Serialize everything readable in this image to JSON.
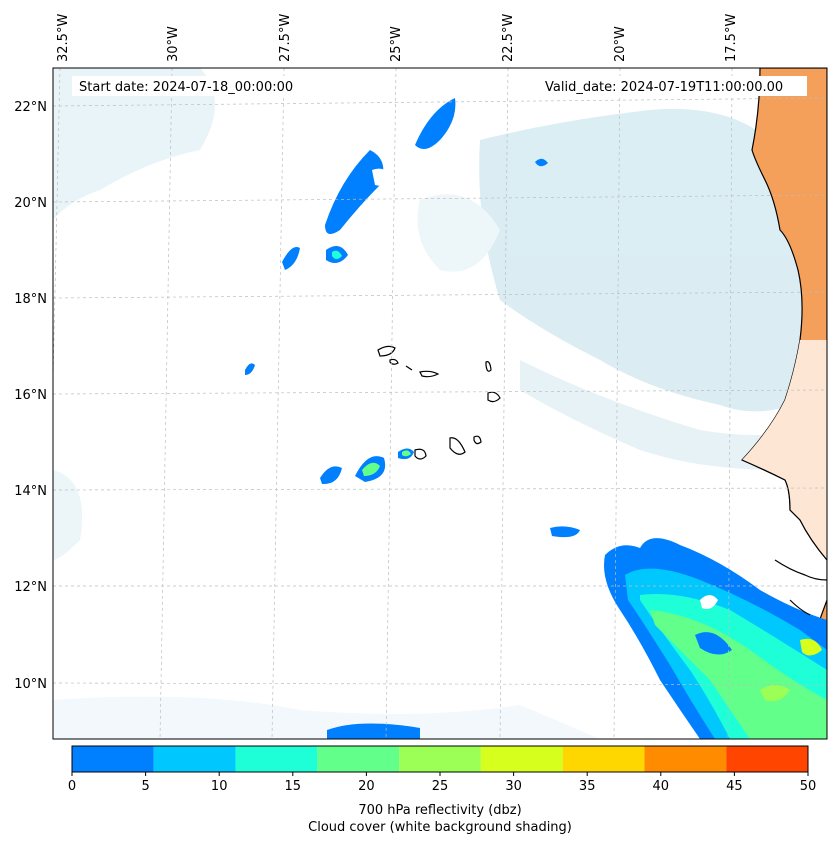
{
  "map": {
    "start_date": "Start date: 2024-07-18_00:00:00",
    "valid_date": "Valid_date: 2024-07-19T11:00:00.00",
    "lon_labels": [
      "32.5°W",
      "30°W",
      "27.5°W",
      "25°W",
      "22.5°W",
      "20°W",
      "17.5°W"
    ],
    "lat_labels": [
      "22°N",
      "20°N",
      "18°N",
      "16°N",
      "14°N",
      "12°N",
      "10°N"
    ],
    "land_color": "#f4a05a",
    "cloud_color": "#cfe8f0"
  },
  "colorbar": {
    "ticks": [
      "0",
      "5",
      "10",
      "15",
      "20",
      "25",
      "30",
      "35",
      "40",
      "45",
      "50"
    ],
    "colors": [
      "#0080ff",
      "#00c8ff",
      "#1effd8",
      "#62ff8a",
      "#9cff55",
      "#d6ff1e",
      "#ffd700",
      "#ff8c00",
      "#ff4500"
    ],
    "label_line1": "700 hPa reflectivity (dbz)",
    "label_line2": "Cloud cover (white background shading)"
  }
}
